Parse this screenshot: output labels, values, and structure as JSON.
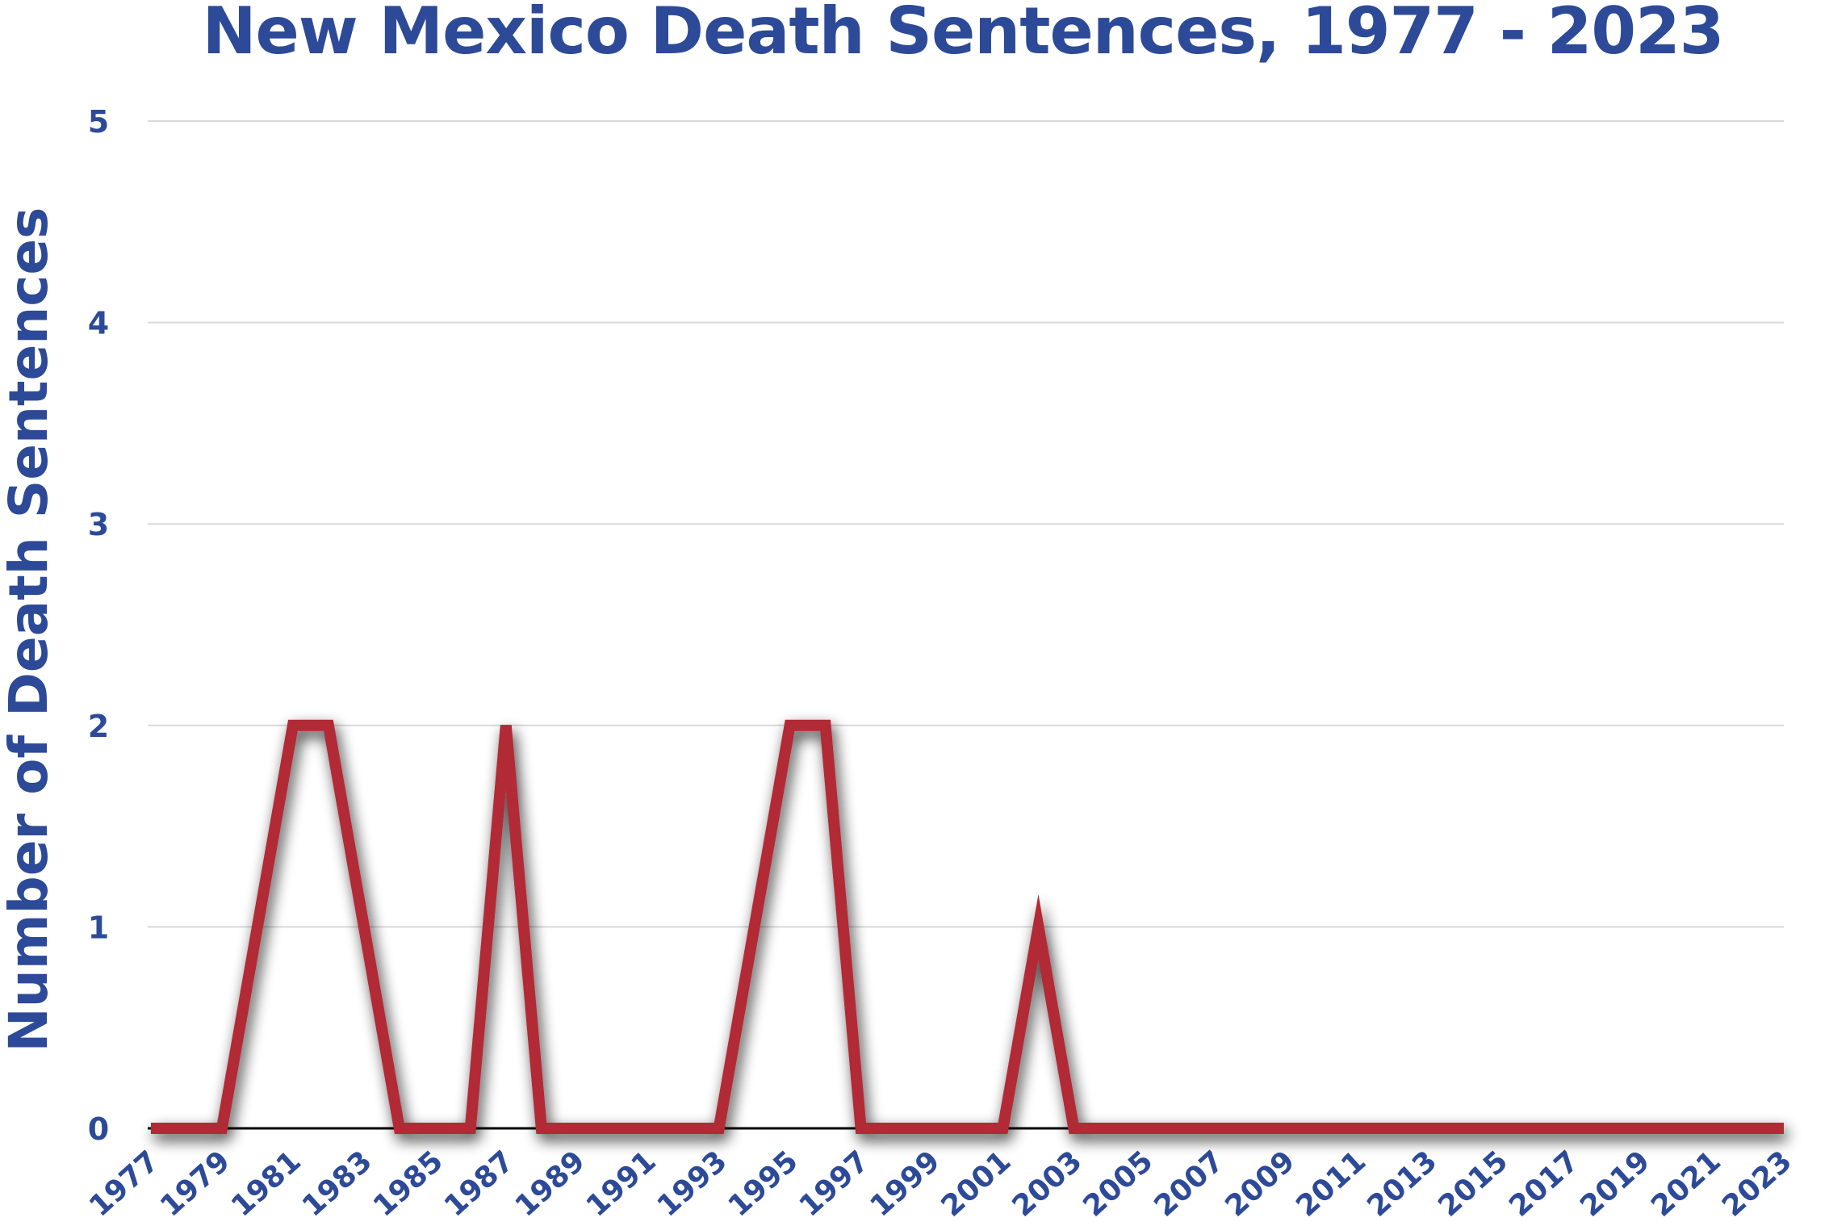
{
  "chart_data": {
    "type": "line",
    "title": "New Mexico Death Sentences, 1977 - 2023",
    "xlabel": "",
    "ylabel": "Number of Death Sentences",
    "ylim": [
      0,
      5
    ],
    "yticks": [
      "0",
      "1",
      "2",
      "3",
      "4",
      "5"
    ],
    "xticks": [
      "1977",
      "1979",
      "1981",
      "1983",
      "1985",
      "1987",
      "1989",
      "1991",
      "1993",
      "1995",
      "1997",
      "1999",
      "2001",
      "2003",
      "2005",
      "2007",
      "2009",
      "2011",
      "2013",
      "2015",
      "2017",
      "2019",
      "2021",
      "2023"
    ],
    "grid": true,
    "line_color": "#b22a35",
    "text_color": "#2d4a98",
    "x": [
      1977,
      1978,
      1979,
      1980,
      1981,
      1982,
      1983,
      1984,
      1985,
      1986,
      1987,
      1988,
      1989,
      1990,
      1991,
      1992,
      1993,
      1994,
      1995,
      1996,
      1997,
      1998,
      1999,
      2000,
      2001,
      2002,
      2003,
      2004,
      2005,
      2006,
      2007,
      2008,
      2009,
      2010,
      2011,
      2012,
      2013,
      2014,
      2015,
      2016,
      2017,
      2018,
      2019,
      2020,
      2021,
      2022,
      2023
    ],
    "series": [
      {
        "values": [
          0,
          0,
          0,
          1,
          2,
          2,
          1,
          0,
          0,
          0,
          2,
          0,
          0,
          0,
          0,
          0,
          0,
          1,
          2,
          2,
          0,
          0,
          0,
          0,
          0,
          1,
          0,
          0,
          0,
          0,
          0,
          0,
          0,
          0,
          0,
          0,
          0,
          0,
          0,
          0,
          0,
          0,
          0,
          0,
          0,
          0,
          0
        ]
      }
    ]
  }
}
